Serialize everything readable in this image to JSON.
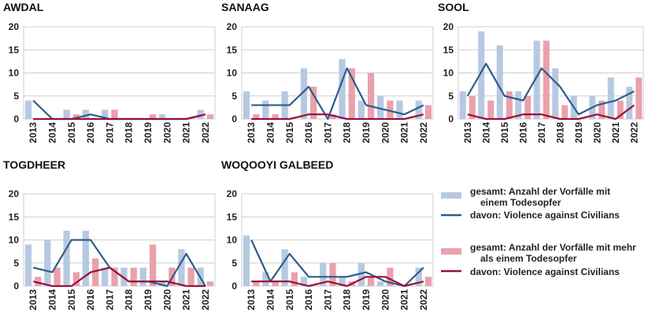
{
  "chart_data": [
    {
      "type": "bar",
      "title": "AWDAL",
      "categories": [
        "2013",
        "2014",
        "2015",
        "2016",
        "2017",
        "2018",
        "2019",
        "2020",
        "2021",
        "2022"
      ],
      "ylim": [
        0,
        20
      ],
      "yticks": [
        0,
        5,
        10,
        15,
        20
      ],
      "series": [
        {
          "name": "gesamt: Anzahl der Vorfälle mit einem Todesopfer",
          "kind": "bar",
          "values": [
            4,
            0,
            2,
            2,
            2,
            0,
            0,
            1,
            0,
            2
          ]
        },
        {
          "name": "davon: Violence against Civilians",
          "kind": "line",
          "values": [
            4,
            0,
            0,
            1,
            0,
            0,
            0,
            0,
            0,
            1
          ]
        },
        {
          "name": "gesamt: Anzahl der Vorfälle mit mehr als einem Todesopfer",
          "kind": "bar",
          "values": [
            0,
            0,
            1,
            0,
            2,
            0,
            1,
            0,
            0,
            1
          ]
        },
        {
          "name": "davon: Violence against Civilians",
          "kind": "line",
          "values": [
            0,
            0,
            0,
            0,
            0,
            0,
            0,
            0,
            0,
            1
          ]
        }
      ]
    },
    {
      "type": "bar",
      "title": "SANAAG",
      "categories": [
        "2013",
        "2014",
        "2015",
        "2016",
        "2017",
        "2018",
        "2019",
        "2020",
        "2021",
        "2022"
      ],
      "ylim": [
        0,
        20
      ],
      "yticks": [
        0,
        5,
        10,
        15,
        20
      ],
      "series": [
        {
          "name": "gesamt: Anzahl der Vorfälle mit einem Todesopfer",
          "kind": "bar",
          "values": [
            6,
            4,
            6,
            11,
            0,
            13,
            4,
            5,
            4,
            4
          ]
        },
        {
          "name": "davon: Violence against Civilians",
          "kind": "line",
          "values": [
            3,
            3,
            3,
            7,
            0,
            11,
            3,
            2,
            1,
            3
          ]
        },
        {
          "name": "gesamt: Anzahl der Vorfälle mit mehr als einem Todesopfer",
          "kind": "bar",
          "values": [
            1,
            1,
            0,
            7,
            1,
            11,
            10,
            4,
            0,
            3
          ]
        },
        {
          "name": "davon: Violence against Civilians",
          "kind": "line",
          "values": [
            0,
            0,
            0,
            1,
            1,
            0,
            0,
            0,
            0,
            1
          ]
        }
      ]
    },
    {
      "type": "bar",
      "title": "SOOL",
      "categories": [
        "2013",
        "2014",
        "2015",
        "2016",
        "2017",
        "2018",
        "2019",
        "2020",
        "2021",
        "2022"
      ],
      "ylim": [
        0,
        20
      ],
      "yticks": [
        0,
        5,
        10,
        15,
        20
      ],
      "series": [
        {
          "name": "gesamt: Anzahl der Vorfälle mit einem Todesopfer",
          "kind": "bar",
          "values": [
            6,
            19,
            16,
            6,
            17,
            11,
            5,
            5,
            9,
            7
          ]
        },
        {
          "name": "davon: Violence against Civilians",
          "kind": "line",
          "values": [
            5,
            12,
            5,
            4,
            11,
            7,
            1,
            3,
            4,
            6
          ]
        },
        {
          "name": "gesamt: Anzahl der Vorfälle mit mehr als einem Todesopfer",
          "kind": "bar",
          "values": [
            5,
            4,
            6,
            5,
            17,
            3,
            0,
            4,
            4,
            9
          ]
        },
        {
          "name": "davon: Violence against Civilians",
          "kind": "line",
          "values": [
            1,
            0,
            0,
            1,
            1,
            0,
            0,
            1,
            0,
            3
          ]
        }
      ]
    },
    {
      "type": "bar",
      "title": "TOGDHEER",
      "categories": [
        "2013",
        "2014",
        "2015",
        "2016",
        "2017",
        "2018",
        "2019",
        "2020",
        "2021",
        "2022"
      ],
      "ylim": [
        0,
        20
      ],
      "yticks": [
        0,
        5,
        10,
        15,
        20
      ],
      "series": [
        {
          "name": "gesamt: Anzahl der Vorfälle mit einem Todesopfer",
          "kind": "bar",
          "values": [
            9,
            10,
            12,
            12,
            4,
            4,
            4,
            1,
            8,
            4
          ]
        },
        {
          "name": "davon: Violence against Civilians",
          "kind": "line",
          "values": [
            4,
            3,
            10,
            10,
            4,
            1,
            1,
            0,
            7,
            0
          ]
        },
        {
          "name": "gesamt: Anzahl der Vorfälle mit mehr als einem Todesopfer",
          "kind": "bar",
          "values": [
            2,
            4,
            3,
            6,
            4,
            4,
            9,
            4,
            4,
            1
          ]
        },
        {
          "name": "davon: Violence against Civilians",
          "kind": "line",
          "values": [
            1,
            0,
            0,
            3,
            4,
            1,
            1,
            1,
            0,
            0
          ]
        }
      ]
    },
    {
      "type": "bar",
      "title": "WOQOOYI GALBEED",
      "categories": [
        "2013",
        "2014",
        "2015",
        "2016",
        "2017",
        "2018",
        "2019",
        "2020",
        "2021",
        "2022"
      ],
      "ylim": [
        0,
        20
      ],
      "yticks": [
        0,
        5,
        10,
        15,
        20
      ],
      "series": [
        {
          "name": "gesamt: Anzahl der Vorfälle mit einem Todesopfer",
          "kind": "bar",
          "values": [
            11,
            3,
            8,
            2,
            5,
            2,
            5,
            1,
            0,
            4
          ]
        },
        {
          "name": "davon: Violence against Civilians",
          "kind": "line",
          "values": [
            10,
            1,
            7,
            2,
            2,
            2,
            3,
            1,
            0,
            4
          ]
        },
        {
          "name": "gesamt: Anzahl der Vorfälle mit mehr als einem Todesopfer",
          "kind": "bar",
          "values": [
            1,
            1,
            3,
            0,
            5,
            1,
            2,
            4,
            0,
            2
          ]
        },
        {
          "name": "davon: Violence against Civilians",
          "kind": "line",
          "values": [
            1,
            1,
            1,
            0,
            1,
            0,
            2,
            2,
            0,
            1
          ]
        }
      ]
    }
  ],
  "legend": [
    {
      "line1": "gesamt: Anzahl der Vorfälle mit",
      "line2": "einem Todesopfer",
      "type": "bar",
      "color": "#b7c9e1"
    },
    {
      "line1": "davon:   Violence against Civilians",
      "line2": "",
      "type": "line",
      "color": "#2e5c8a"
    },
    {
      "line1": "gesamt: Anzahl der Vorfälle mit mehr",
      "line2": "als einem Todesopfer",
      "type": "bar",
      "color": "#e9a1ac"
    },
    {
      "line1": "davon:   Violence against Civilians",
      "line2": "",
      "type": "line",
      "color": "#9a0f3e"
    }
  ],
  "colors": {
    "bar_single": "#b7c9e1",
    "line_single": "#2e5c8a",
    "bar_multi": "#e9a1ac",
    "line_multi": "#9a0f3e"
  }
}
